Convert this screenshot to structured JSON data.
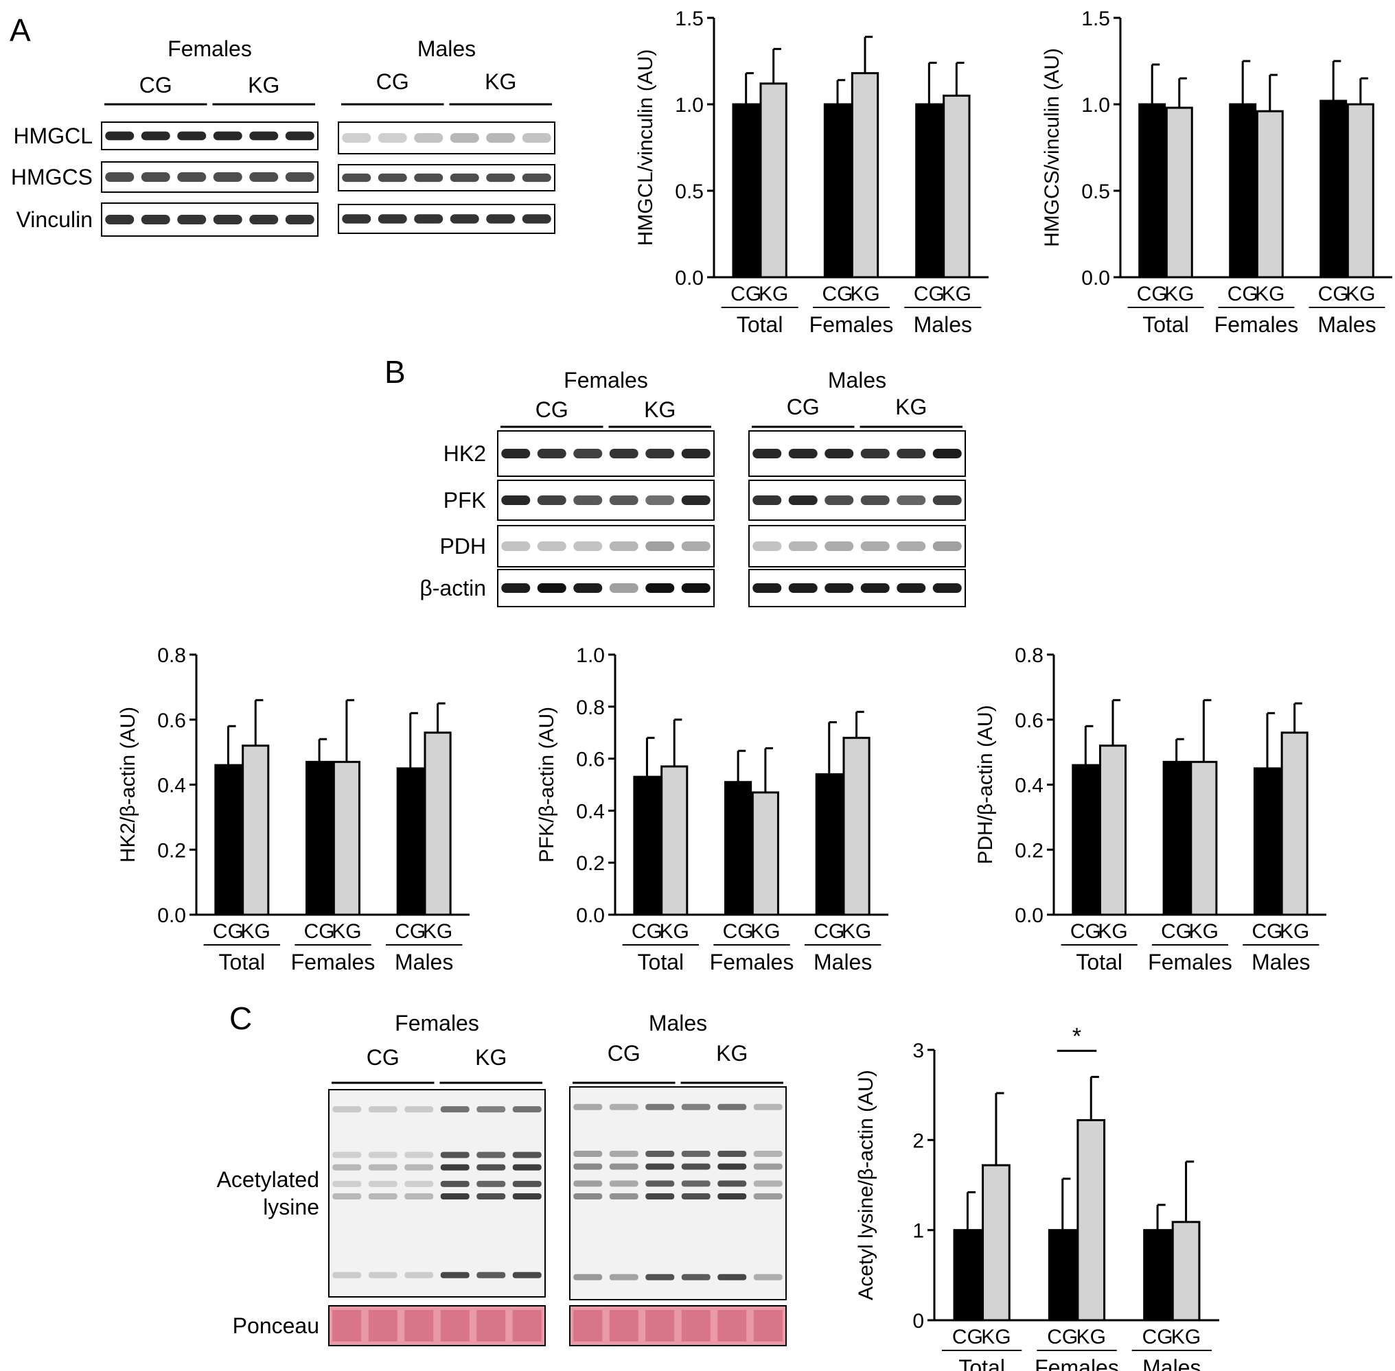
{
  "figure": {
    "panels": [
      {
        "id": "A",
        "label": "A",
        "blots": [
          {
            "sex": "Females",
            "groups": [
              "CG",
              "KG"
            ],
            "rows": [
              {
                "protein": "HMGCL",
                "band_intensity": [
                  0.9,
                  0.9,
                  0.9,
                  0.9,
                  0.9,
                  0.9
                ]
              },
              {
                "protein": "HMGCS",
                "band_intensity": [
                  0.75,
                  0.75,
                  0.75,
                  0.75,
                  0.75,
                  0.75
                ]
              },
              {
                "protein": "Vinculin",
                "band_intensity": [
                  0.85,
                  0.85,
                  0.85,
                  0.85,
                  0.85,
                  0.85
                ]
              }
            ]
          },
          {
            "sex": "Males",
            "groups": [
              "CG",
              "KG"
            ],
            "rows": [
              {
                "protein": "HMGCL",
                "band_intensity": [
                  0.2,
                  0.2,
                  0.25,
                  0.3,
                  0.3,
                  0.25
                ]
              },
              {
                "protein": "HMGCS",
                "band_intensity": [
                  0.75,
                  0.75,
                  0.75,
                  0.75,
                  0.75,
                  0.75
                ]
              },
              {
                "protein": "Vinculin",
                "band_intensity": [
                  0.85,
                  0.85,
                  0.85,
                  0.85,
                  0.85,
                  0.85
                ]
              }
            ]
          }
        ]
      },
      {
        "id": "B",
        "label": "B",
        "blots": [
          {
            "sex": "Females",
            "groups": [
              "CG",
              "KG"
            ],
            "rows": [
              {
                "protein": "HK2",
                "band_intensity": [
                  0.9,
                  0.85,
                  0.8,
                  0.85,
                  0.85,
                  0.9
                ]
              },
              {
                "protein": "PFK",
                "band_intensity": [
                  0.9,
                  0.8,
                  0.7,
                  0.7,
                  0.6,
                  0.9
                ]
              },
              {
                "protein": "PDH",
                "band_intensity": [
                  0.25,
                  0.25,
                  0.25,
                  0.3,
                  0.4,
                  0.35
                ]
              },
              {
                "protein": "β-actin",
                "band_intensity": [
                  0.95,
                  1.0,
                  0.95,
                  0.4,
                  1.0,
                  1.0
                ]
              }
            ]
          },
          {
            "sex": "Males",
            "groups": [
              "CG",
              "KG"
            ],
            "rows": [
              {
                "protein": "HK2",
                "band_intensity": [
                  0.9,
                  0.9,
                  0.9,
                  0.85,
                  0.85,
                  0.95
                ]
              },
              {
                "protein": "PFK",
                "band_intensity": [
                  0.85,
                  0.9,
                  0.75,
                  0.75,
                  0.65,
                  0.8
                ]
              },
              {
                "protein": "PDH",
                "band_intensity": [
                  0.25,
                  0.3,
                  0.35,
                  0.35,
                  0.35,
                  0.4
                ]
              },
              {
                "protein": "β-actin",
                "band_intensity": [
                  0.95,
                  0.95,
                  0.95,
                  0.95,
                  0.95,
                  0.95
                ]
              }
            ]
          }
        ]
      },
      {
        "id": "C",
        "label": "C",
        "blots": [
          {
            "sex": "Females",
            "groups": [
              "CG",
              "KG"
            ],
            "rows": [
              {
                "protein": "Acetylated lysine",
                "label_lines": [
                  "Acetylated",
                  "lysine"
                ],
                "band_intensity": [
                  0.3,
                  0.3,
                  0.3,
                  0.95,
                  0.85,
                  0.95
                ]
              },
              {
                "protein": "Ponceau",
                "band_intensity": [
                  0.6,
                  0.6,
                  0.6,
                  0.6,
                  0.6,
                  0.6
                ]
              }
            ]
          },
          {
            "sex": "Males",
            "groups": [
              "CG",
              "KG"
            ],
            "rows": [
              {
                "protein": "Acetylated lysine",
                "label_lines": [
                  "Acetylated",
                  "lysine"
                ],
                "band_intensity": [
                  0.55,
                  0.5,
                  0.9,
                  0.85,
                  0.95,
                  0.45
                ]
              },
              {
                "protein": "Ponceau",
                "band_intensity": [
                  0.6,
                  0.6,
                  0.6,
                  0.6,
                  0.6,
                  0.6
                ]
              }
            ]
          }
        ]
      }
    ],
    "colors": {
      "cg_bar": "#000000",
      "kg_bar": "#d3d3d3",
      "blot_background": "#ffffff",
      "band": "#111111",
      "ponceau": "#e89aa6"
    }
  },
  "chart_data": [
    {
      "panel": "A",
      "type": "bar",
      "ylabel": "HMGCL/vinculin (AU)",
      "ylim": [
        0,
        1.5
      ],
      "yticks": [
        "0.0",
        "0.5",
        "1.0",
        "1.5"
      ],
      "categories": [
        "Total",
        "Females",
        "Males"
      ],
      "series": [
        {
          "name": "CG",
          "values": [
            1.0,
            1.0,
            1.0
          ],
          "error": [
            0.18,
            0.14,
            0.24
          ]
        },
        {
          "name": "KG",
          "values": [
            1.12,
            1.18,
            1.05
          ],
          "error": [
            0.2,
            0.21,
            0.19
          ]
        }
      ],
      "annotations": []
    },
    {
      "panel": "A",
      "type": "bar",
      "ylabel": "HMGCS/vinculin (AU)",
      "ylim": [
        0,
        1.5
      ],
      "yticks": [
        "0.0",
        "0.5",
        "1.0",
        "1.5"
      ],
      "categories": [
        "Total",
        "Females",
        "Males"
      ],
      "series": [
        {
          "name": "CG",
          "values": [
            1.0,
            1.0,
            1.02
          ],
          "error": [
            0.23,
            0.25,
            0.23
          ]
        },
        {
          "name": "KG",
          "values": [
            0.98,
            0.96,
            1.0
          ],
          "error": [
            0.17,
            0.21,
            0.15
          ]
        }
      ],
      "annotations": []
    },
    {
      "panel": "B",
      "type": "bar",
      "ylabel": "HK2/β-actin (AU)",
      "ylim": [
        0,
        0.8
      ],
      "yticks": [
        "0.0",
        "0.2",
        "0.4",
        "0.6",
        "0.8"
      ],
      "categories": [
        "Total",
        "Females",
        "Males"
      ],
      "series": [
        {
          "name": "CG",
          "values": [
            0.46,
            0.47,
            0.45
          ],
          "error": [
            0.12,
            0.07,
            0.17
          ]
        },
        {
          "name": "KG",
          "values": [
            0.52,
            0.47,
            0.56
          ],
          "error": [
            0.14,
            0.19,
            0.09
          ]
        }
      ],
      "annotations": []
    },
    {
      "panel": "B",
      "type": "bar",
      "ylabel": "PFK/β-actin (AU)",
      "ylim": [
        0,
        1.0
      ],
      "yticks": [
        "0.0",
        "0.2",
        "0.4",
        "0.6",
        "0.8",
        "1.0"
      ],
      "categories": [
        "Total",
        "Females",
        "Males"
      ],
      "series": [
        {
          "name": "CG",
          "values": [
            0.53,
            0.51,
            0.54
          ],
          "error": [
            0.15,
            0.12,
            0.2
          ]
        },
        {
          "name": "KG",
          "values": [
            0.57,
            0.47,
            0.68
          ],
          "error": [
            0.18,
            0.17,
            0.1
          ]
        }
      ],
      "annotations": []
    },
    {
      "panel": "B",
      "type": "bar",
      "ylabel": "PDH/β-actin (AU)",
      "ylim": [
        0,
        0.8
      ],
      "yticks": [
        "0.0",
        "0.2",
        "0.4",
        "0.6",
        "0.8"
      ],
      "categories": [
        "Total",
        "Females",
        "Males"
      ],
      "series": [
        {
          "name": "CG",
          "values": [
            0.46,
            0.47,
            0.45
          ],
          "error": [
            0.12,
            0.07,
            0.17
          ]
        },
        {
          "name": "KG",
          "values": [
            0.52,
            0.47,
            0.56
          ],
          "error": [
            0.14,
            0.19,
            0.09
          ]
        }
      ],
      "annotations": []
    },
    {
      "panel": "C",
      "type": "bar",
      "ylabel": "Acetyl lysine/β-actin (AU)",
      "ylim": [
        0,
        3
      ],
      "yticks": [
        "0",
        "1",
        "2",
        "3"
      ],
      "categories": [
        "Total",
        "Females",
        "Males"
      ],
      "series": [
        {
          "name": "CG",
          "values": [
            1.0,
            1.0,
            1.0
          ],
          "error": [
            0.42,
            0.57,
            0.28
          ]
        },
        {
          "name": "KG",
          "values": [
            1.72,
            2.22,
            1.09
          ],
          "error": [
            0.8,
            0.48,
            0.67
          ]
        }
      ],
      "annotations": [
        {
          "text": "*",
          "category": "Females",
          "between": [
            "CG",
            "KG"
          ]
        }
      ]
    }
  ]
}
